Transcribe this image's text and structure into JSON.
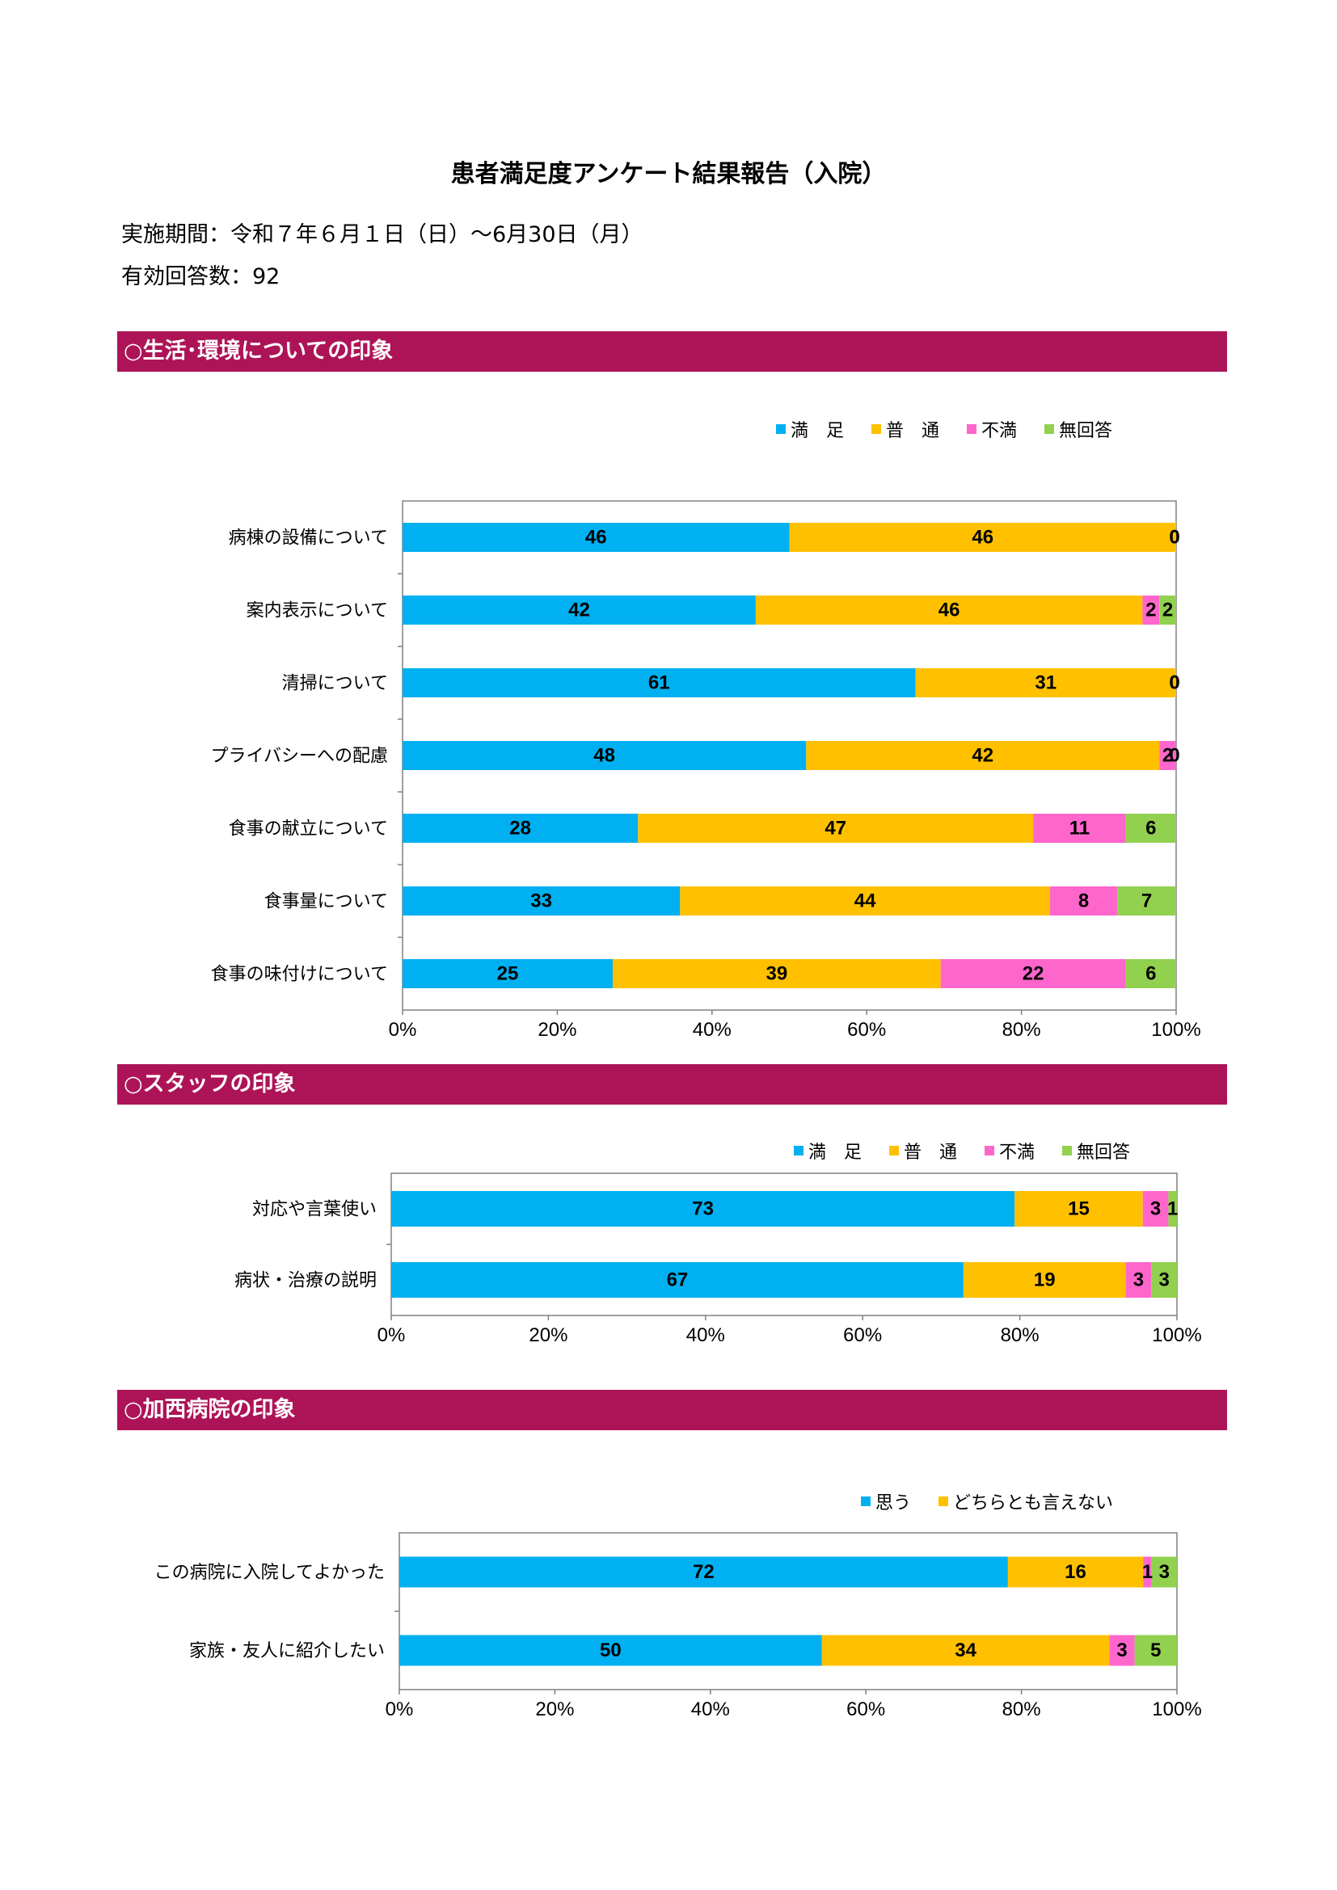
{
  "document": {
    "title": "患者満足度アンケート結果報告（入院）",
    "period_label": "実施期間：令和７年６月１日（日）～6月30日（月）",
    "responses_label": "有効回答数：92"
  },
  "sections": [
    {
      "title": "○生活･環境についての印象"
    },
    {
      "title": "○スタッフの印象"
    },
    {
      "title": "○加西病院の印象"
    }
  ],
  "colors": {
    "section_bar": "#ad1457",
    "satisfied": "#00b0f0",
    "normal": "#ffc000",
    "dissatisfied": "#ff66cc",
    "no_answer": "#92d050"
  },
  "chart_data": [
    {
      "type": "bar",
      "orientation": "horizontal",
      "stacked": "percent",
      "legend_position": "top-right",
      "categories": [
        "病棟の設備について",
        "案内表示について",
        "清掃について",
        "プライバシーへの配慮",
        "食事の献立について",
        "食事量について",
        "食事の味付けについて"
      ],
      "series": [
        {
          "name": "満　足",
          "color": "#00b0f0",
          "values": [
            46,
            42,
            61,
            48,
            28,
            33,
            25
          ]
        },
        {
          "name": "普　通",
          "color": "#ffc000",
          "values": [
            46,
            46,
            31,
            42,
            47,
            44,
            39
          ]
        },
        {
          "name": "不満",
          "color": "#ff66cc",
          "values": [
            0,
            2,
            0,
            2,
            11,
            8,
            22
          ]
        },
        {
          "name": "無回答",
          "color": "#92d050",
          "values": [
            0,
            2,
            0,
            0,
            6,
            7,
            6
          ]
        }
      ],
      "x_ticks": [
        "0%",
        "20%",
        "40%",
        "60%",
        "80%",
        "100%"
      ],
      "xlim": [
        0,
        100
      ]
    },
    {
      "type": "bar",
      "orientation": "horizontal",
      "stacked": "percent",
      "legend_position": "top-right",
      "categories": [
        "対応や言葉使い",
        "病状・治療の説明"
      ],
      "series": [
        {
          "name": "満　足",
          "color": "#00b0f0",
          "values": [
            73,
            67
          ]
        },
        {
          "name": "普　通",
          "color": "#ffc000",
          "values": [
            15,
            19
          ]
        },
        {
          "name": "不満",
          "color": "#ff66cc",
          "values": [
            3,
            3
          ]
        },
        {
          "name": "無回答",
          "color": "#92d050",
          "values": [
            1,
            3
          ]
        }
      ],
      "x_ticks": [
        "0%",
        "20%",
        "40%",
        "60%",
        "80%",
        "100%"
      ],
      "xlim": [
        0,
        100
      ]
    },
    {
      "type": "bar",
      "orientation": "horizontal",
      "stacked": "percent",
      "legend_position": "top-right",
      "categories": [
        "この病院に入院してよかった",
        "家族・友人に紹介したい"
      ],
      "series": [
        {
          "name": "思う",
          "color": "#00b0f0",
          "values": [
            72,
            50
          ]
        },
        {
          "name": "どちらとも言えない",
          "color": "#ffc000",
          "values": [
            16,
            34
          ]
        },
        {
          "name": "",
          "color": "#ff66cc",
          "values": [
            1,
            3
          ],
          "in_legend": false
        },
        {
          "name": "",
          "color": "#92d050",
          "values": [
            3,
            5
          ],
          "in_legend": false
        }
      ],
      "x_ticks": [
        "0%",
        "20%",
        "40%",
        "60%",
        "80%",
        "100%"
      ],
      "xlim": [
        0,
        100
      ]
    }
  ]
}
